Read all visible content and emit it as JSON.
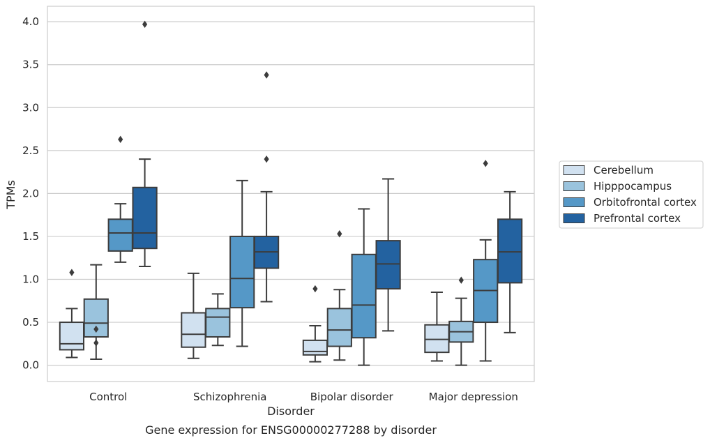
{
  "chart_data": {
    "type": "boxplot",
    "title": "",
    "caption": "Gene expression for ENSG00000277288 by disorder",
    "xlabel": "Disorder",
    "ylabel": "TPMs",
    "ylim": [
      -0.19,
      4.18
    ],
    "yticks": [
      0.0,
      0.5,
      1.0,
      1.5,
      2.0,
      2.5,
      3.0,
      3.5,
      4.0
    ],
    "ytick_labels": [
      "0.0",
      "0.5",
      "1.0",
      "1.5",
      "2.0",
      "2.5",
      "3.0",
      "3.5",
      "4.0"
    ],
    "grid": "horizontal",
    "legend_position": "right",
    "categories": [
      "Control",
      "Schizophrenia",
      "Bipolar disorder",
      "Major depression"
    ],
    "series": [
      {
        "name": "Cerebellum",
        "color": "#d1e1f0",
        "boxes": [
          {
            "whislo": 0.09,
            "q1": 0.18,
            "med": 0.25,
            "q3": 0.5,
            "whishi": 0.66,
            "fliers": [
              1.08
            ]
          },
          {
            "whislo": 0.08,
            "q1": 0.21,
            "med": 0.36,
            "q3": 0.61,
            "whishi": 1.07,
            "fliers": []
          },
          {
            "whislo": 0.04,
            "q1": 0.12,
            "med": 0.16,
            "q3": 0.29,
            "whishi": 0.46,
            "fliers": [
              0.89
            ]
          },
          {
            "whislo": 0.05,
            "q1": 0.15,
            "med": 0.3,
            "q3": 0.47,
            "whishi": 0.85,
            "fliers": []
          }
        ]
      },
      {
        "name": "Hipppocampus",
        "color": "#9ac3dd",
        "boxes": [
          {
            "whislo": 0.07,
            "q1": 0.33,
            "med": 0.49,
            "q3": 0.77,
            "whishi": 1.17,
            "fliers": [
              0.42,
              0.26
            ]
          },
          {
            "whislo": 0.23,
            "q1": 0.33,
            "med": 0.56,
            "q3": 0.66,
            "whishi": 0.83,
            "fliers": []
          },
          {
            "whislo": 0.06,
            "q1": 0.22,
            "med": 0.41,
            "q3": 0.66,
            "whishi": 0.88,
            "fliers": [
              1.53
            ]
          },
          {
            "whislo": 0.0,
            "q1": 0.27,
            "med": 0.39,
            "q3": 0.51,
            "whishi": 0.78,
            "fliers": [
              0.99
            ]
          }
        ]
      },
      {
        "name": "Orbitofrontal cortex",
        "color": "#5598c7",
        "boxes": [
          {
            "whislo": 1.2,
            "q1": 1.33,
            "med": 1.54,
            "q3": 1.7,
            "whishi": 1.88,
            "fliers": [
              2.63
            ]
          },
          {
            "whislo": 0.22,
            "q1": 0.67,
            "med": 1.01,
            "q3": 1.5,
            "whishi": 2.15,
            "fliers": []
          },
          {
            "whislo": 0.0,
            "q1": 0.32,
            "med": 0.7,
            "q3": 1.29,
            "whishi": 1.82,
            "fliers": []
          },
          {
            "whislo": 0.05,
            "q1": 0.5,
            "med": 0.87,
            "q3": 1.23,
            "whishi": 1.46,
            "fliers": [
              2.35
            ]
          }
        ]
      },
      {
        "name": "Prefrontal cortex",
        "color": "#2362a0",
        "boxes": [
          {
            "whislo": 1.15,
            "q1": 1.36,
            "med": 1.54,
            "q3": 2.07,
            "whishi": 2.4,
            "fliers": [
              3.97
            ]
          },
          {
            "whislo": 0.74,
            "q1": 1.13,
            "med": 1.32,
            "q3": 1.5,
            "whishi": 2.02,
            "fliers": [
              3.38,
              2.4
            ]
          },
          {
            "whislo": 0.4,
            "q1": 0.89,
            "med": 1.18,
            "q3": 1.45,
            "whishi": 2.17,
            "fliers": []
          },
          {
            "whislo": 0.38,
            "q1": 0.96,
            "med": 1.32,
            "q3": 1.7,
            "whishi": 2.02,
            "fliers": []
          }
        ]
      }
    ]
  }
}
